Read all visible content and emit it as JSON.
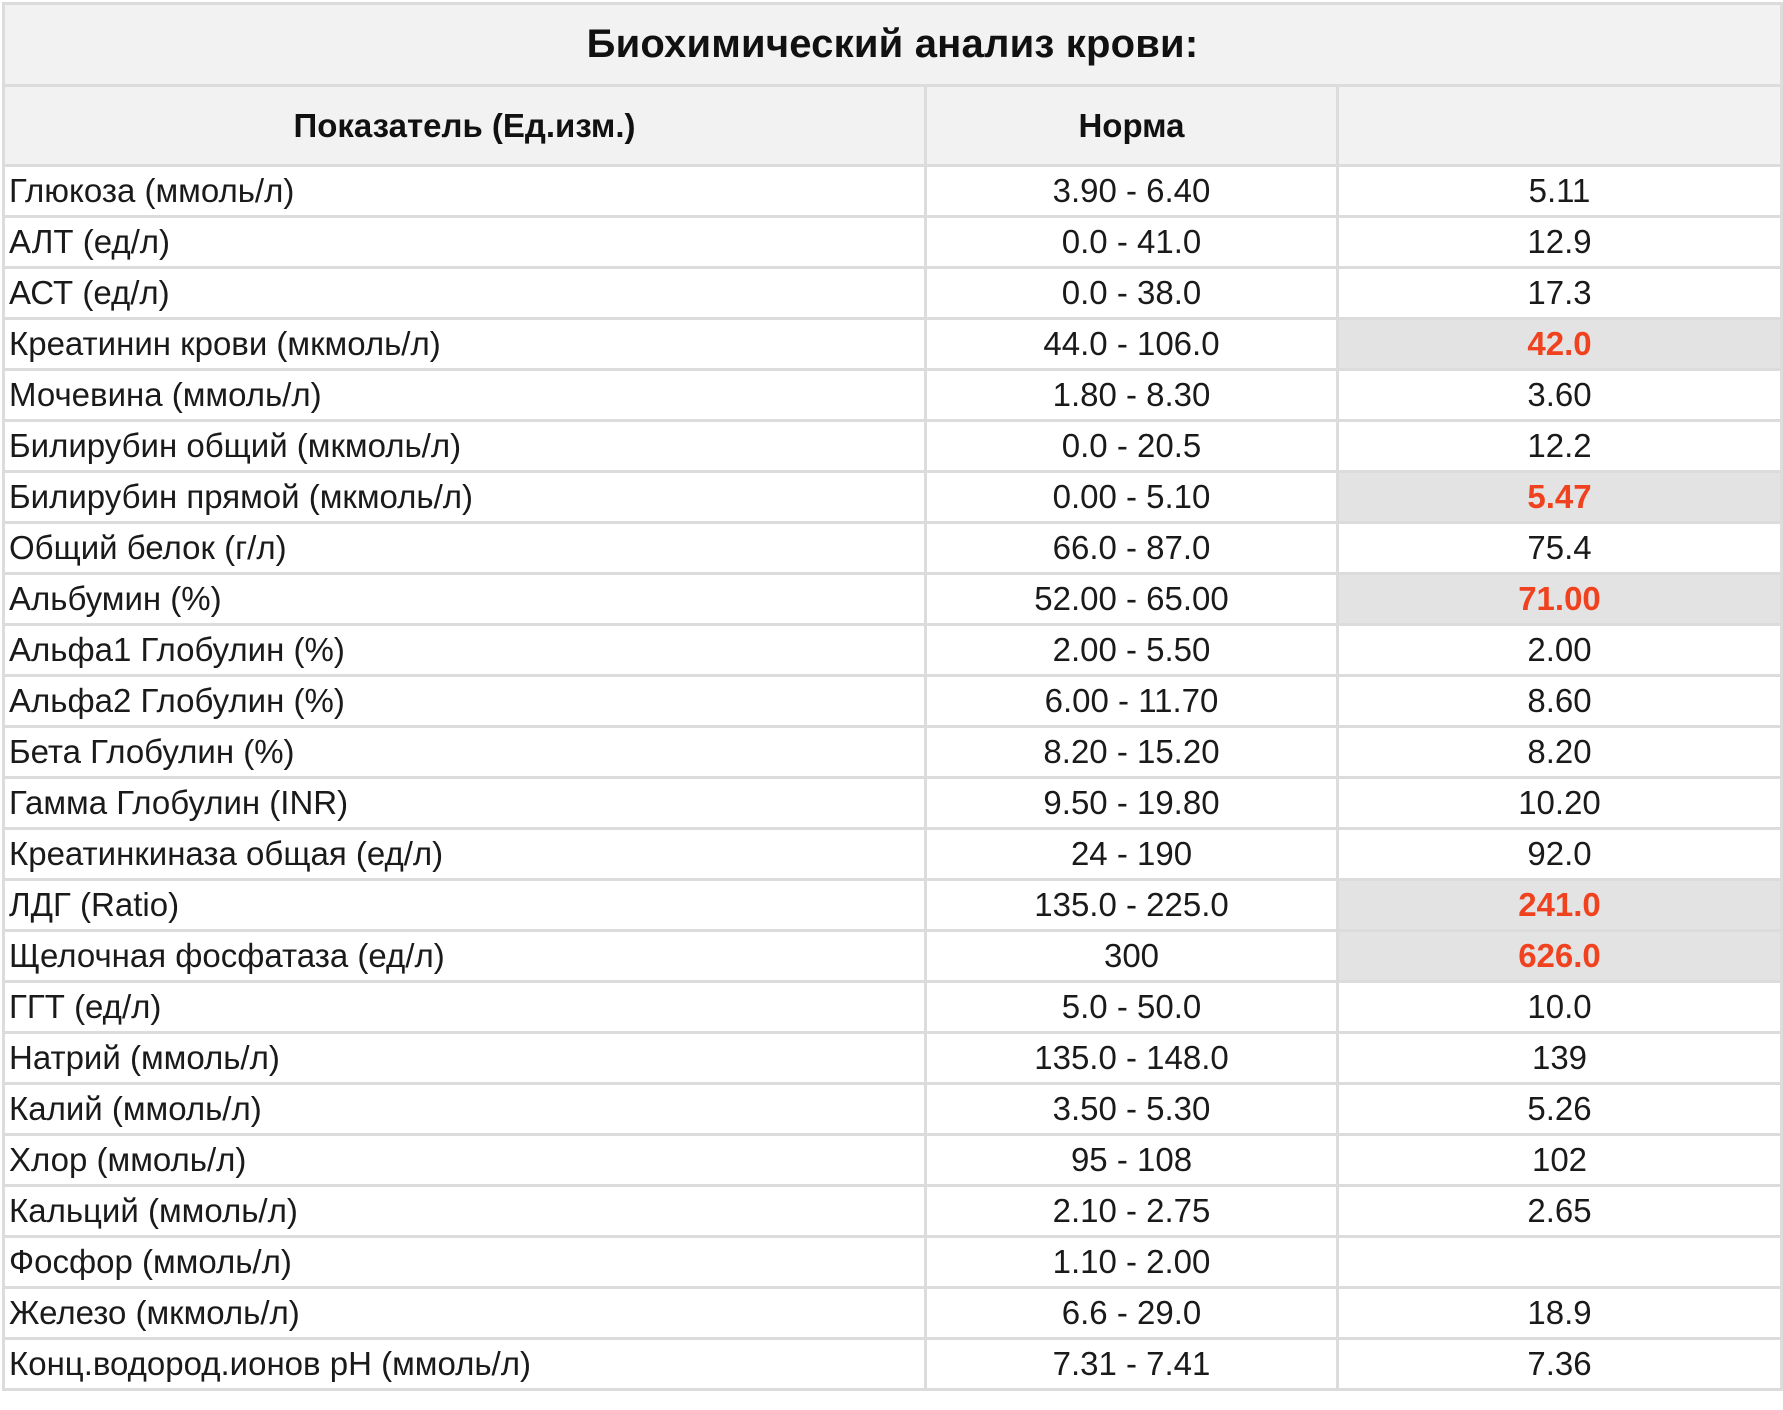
{
  "title": "Биохимический анализ крови:",
  "columns": {
    "indicator": "Показатель (Ед.изм.)",
    "norm": "Норма",
    "value": ""
  },
  "highlight_color": "#f0421f",
  "highlight_background": "#e3e3e3",
  "rows": [
    {
      "name": "Глюкоза (ммоль/л)",
      "norm": "3.90 - 6.40",
      "value": "5.11",
      "flag": false
    },
    {
      "name": "АЛТ (ед/л)",
      "norm": "0.0 - 41.0",
      "value": "12.9",
      "flag": false
    },
    {
      "name": "АСТ (ед/л)",
      "norm": "0.0 - 38.0",
      "value": "17.3",
      "flag": false
    },
    {
      "name": "Креатинин крови (мкмоль/л)",
      "norm": "44.0 - 106.0",
      "value": "42.0",
      "flag": true
    },
    {
      "name": "Мочевина (ммоль/л)",
      "norm": "1.80 - 8.30",
      "value": "3.60",
      "flag": false
    },
    {
      "name": "Билирубин общий (мкмоль/л)",
      "norm": "0.0 - 20.5",
      "value": "12.2",
      "flag": false
    },
    {
      "name": "Билирубин прямой (мкмоль/л)",
      "norm": "0.00 - 5.10",
      "value": "5.47",
      "flag": true
    },
    {
      "name": "Общий белок (г/л)",
      "norm": "66.0 - 87.0",
      "value": "75.4",
      "flag": false
    },
    {
      "name": "Альбумин (%)",
      "norm": "52.00 - 65.00",
      "value": "71.00",
      "flag": true
    },
    {
      "name": "Альфа1 Глобулин (%)",
      "norm": "2.00 - 5.50",
      "value": "2.00",
      "flag": false
    },
    {
      "name": "Альфа2 Глобулин (%)",
      "norm": "6.00 - 11.70",
      "value": "8.60",
      "flag": false
    },
    {
      "name": "Бета Глобулин (%)",
      "norm": "8.20 - 15.20",
      "value": "8.20",
      "flag": false
    },
    {
      "name": "Гамма Глобулин (INR)",
      "norm": "9.50 - 19.80",
      "value": "10.20",
      "flag": false
    },
    {
      "name": "Креатинкиназа общая (ед/л)",
      "norm": "24 - 190",
      "value": "92.0",
      "flag": false
    },
    {
      "name": "ЛДГ (Ratio)",
      "norm": "135.0 - 225.0",
      "value": "241.0",
      "flag": true
    },
    {
      "name": "Щелочная фосфатаза (ед/л)",
      "norm": "300",
      "value": "626.0",
      "flag": true
    },
    {
      "name": "ГГТ (ед/л)",
      "norm": "5.0 - 50.0",
      "value": "10.0",
      "flag": false
    },
    {
      "name": "Натрий (ммоль/л)",
      "norm": "135.0 - 148.0",
      "value": "139",
      "flag": false
    },
    {
      "name": "Калий (ммоль/л)",
      "norm": "3.50 - 5.30",
      "value": "5.26",
      "flag": false
    },
    {
      "name": "Хлор (ммоль/л)",
      "norm": "95 - 108",
      "value": "102",
      "flag": false
    },
    {
      "name": "Кальций (ммоль/л)",
      "norm": "2.10 - 2.75",
      "value": "2.65",
      "flag": false
    },
    {
      "name": "Фосфор (ммоль/л)",
      "norm": "1.10 - 2.00",
      "value": "",
      "flag": false
    },
    {
      "name": "Железо (мкмоль/л)",
      "norm": "6.6 - 29.0",
      "value": "18.9",
      "flag": false
    },
    {
      "name": "Конц.водород.ионов pH (ммоль/л)",
      "norm": "7.31 - 7.41",
      "value": "7.36",
      "flag": false
    }
  ]
}
